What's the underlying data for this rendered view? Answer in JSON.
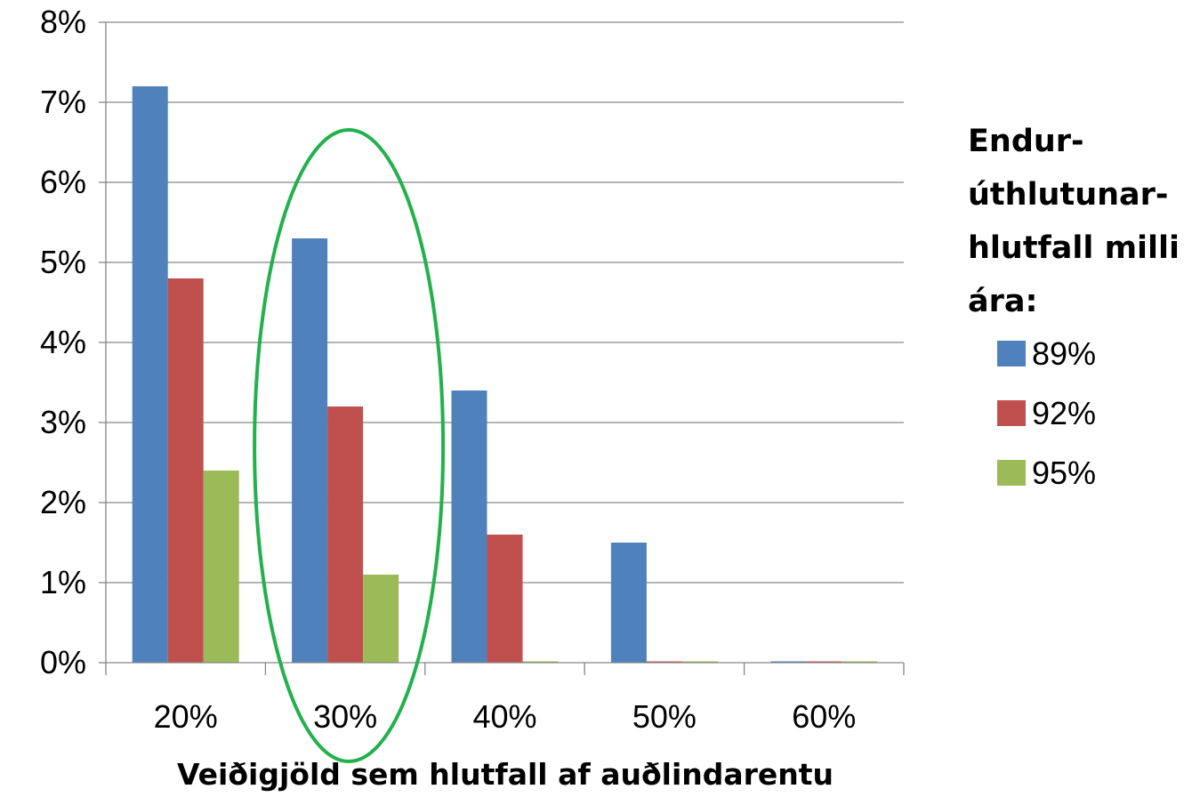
{
  "chart_data": {
    "type": "bar",
    "categories": [
      "20%",
      "30%",
      "40%",
      "50%",
      "60%"
    ],
    "series": [
      {
        "name": "89%",
        "color": "#4F81BD",
        "values": [
          7.2,
          5.3,
          3.4,
          1.5,
          0.0
        ]
      },
      {
        "name": "92%",
        "color": "#C0504D",
        "values": [
          4.8,
          3.2,
          1.6,
          0.0,
          0.0
        ]
      },
      {
        "name": "95%",
        "color": "#9BBB59",
        "values": [
          2.4,
          1.1,
          0.0,
          0.0,
          0.0
        ]
      }
    ],
    "y_ticks": [
      "0%",
      "1%",
      "2%",
      "3%",
      "4%",
      "5%",
      "6%",
      "7%",
      "8%"
    ],
    "ylim": [
      0,
      8
    ],
    "xlabel": "Veiðigjöld sem hlutfall af auðlindarentu",
    "ylabel": "",
    "legend_title_lines": [
      "Endur-",
      "úthlutunar-",
      "hlutfall milli",
      "ára:"
    ],
    "legend_position": "right",
    "grid": true,
    "highlighted_category": "30%",
    "highlight_color": "#22B14C",
    "gridline_color": "#868686"
  }
}
